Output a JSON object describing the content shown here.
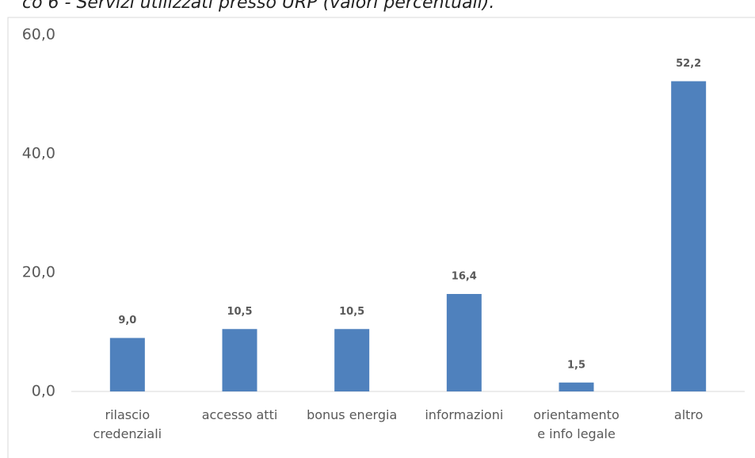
{
  "chart_data": {
    "type": "bar",
    "title": "co 6 - Servizi utilizzati presso URP (valori percentuali).",
    "categories": [
      "rilascio\ncredenziali",
      "accesso atti",
      "bonus energia",
      "informazioni",
      "orientamento\ne info legale",
      "altro"
    ],
    "values": [
      9.0,
      10.5,
      10.5,
      16.4,
      1.5,
      52.2
    ],
    "value_labels": [
      "9,0",
      "10,5",
      "10,5",
      "16,4",
      "1,5",
      "52,2"
    ],
    "color": "#4f81bd",
    "ylim": [
      0,
      60
    ],
    "yticks": [
      {
        "value": 0,
        "label": "0,0"
      },
      {
        "value": 20,
        "label": "20,0"
      },
      {
        "value": 40,
        "label": "40,0"
      },
      {
        "value": 60,
        "label": "60,0"
      }
    ],
    "grid": false
  }
}
